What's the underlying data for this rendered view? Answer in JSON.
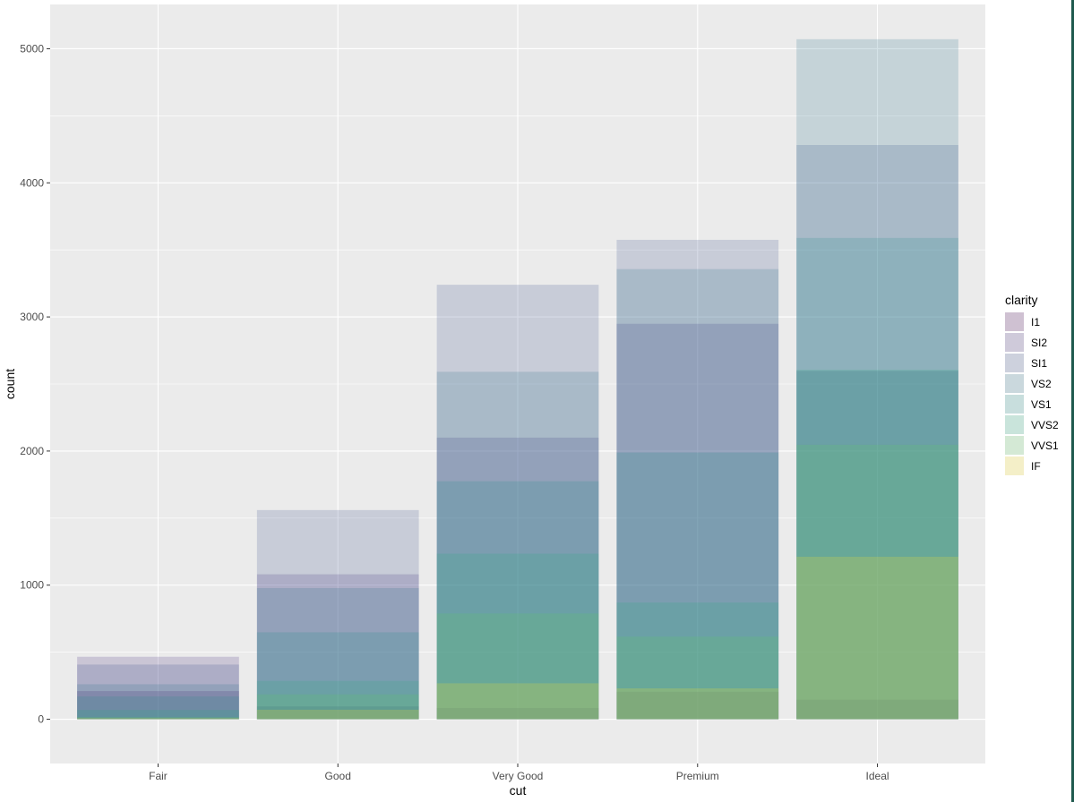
{
  "chart_data": {
    "type": "bar",
    "layout": "overlapping-identity",
    "categories": [
      "Fair",
      "Good",
      "Very Good",
      "Premium",
      "Ideal"
    ],
    "xlabel": "cut",
    "ylabel": "count",
    "ylim": [
      -330,
      5330
    ],
    "yticks": [
      0,
      1000,
      2000,
      3000,
      4000,
      5000
    ],
    "grid": true,
    "legend_position": "right",
    "legend_title": "clarity",
    "bar_opacity": 0.2,
    "series": [
      {
        "name": "I1",
        "color": "#440154",
        "values": [
          210,
          96,
          84,
          205,
          146
        ]
      },
      {
        "name": "SI2",
        "color": "#472D7B",
        "values": [
          466,
          1081,
          2100,
          2949,
          2598
        ]
      },
      {
        "name": "SI1",
        "color": "#3B528B",
        "values": [
          408,
          1560,
          3240,
          3575,
          4282
        ]
      },
      {
        "name": "VS2",
        "color": "#2C728E",
        "values": [
          261,
          978,
          2591,
          3357,
          5071
        ]
      },
      {
        "name": "VS1",
        "color": "#21908C",
        "values": [
          170,
          648,
          1775,
          1989,
          3589
        ]
      },
      {
        "name": "VVS2",
        "color": "#27AD81",
        "values": [
          69,
          286,
          1235,
          870,
          2606
        ]
      },
      {
        "name": "VVS1",
        "color": "#5DC863",
        "values": [
          17,
          186,
          789,
          616,
          2047
        ]
      },
      {
        "name": "IF",
        "color": "#FDE725",
        "values": [
          9,
          71,
          268,
          230,
          1212
        ]
      }
    ]
  },
  "edge_color": "#1f5a4e"
}
